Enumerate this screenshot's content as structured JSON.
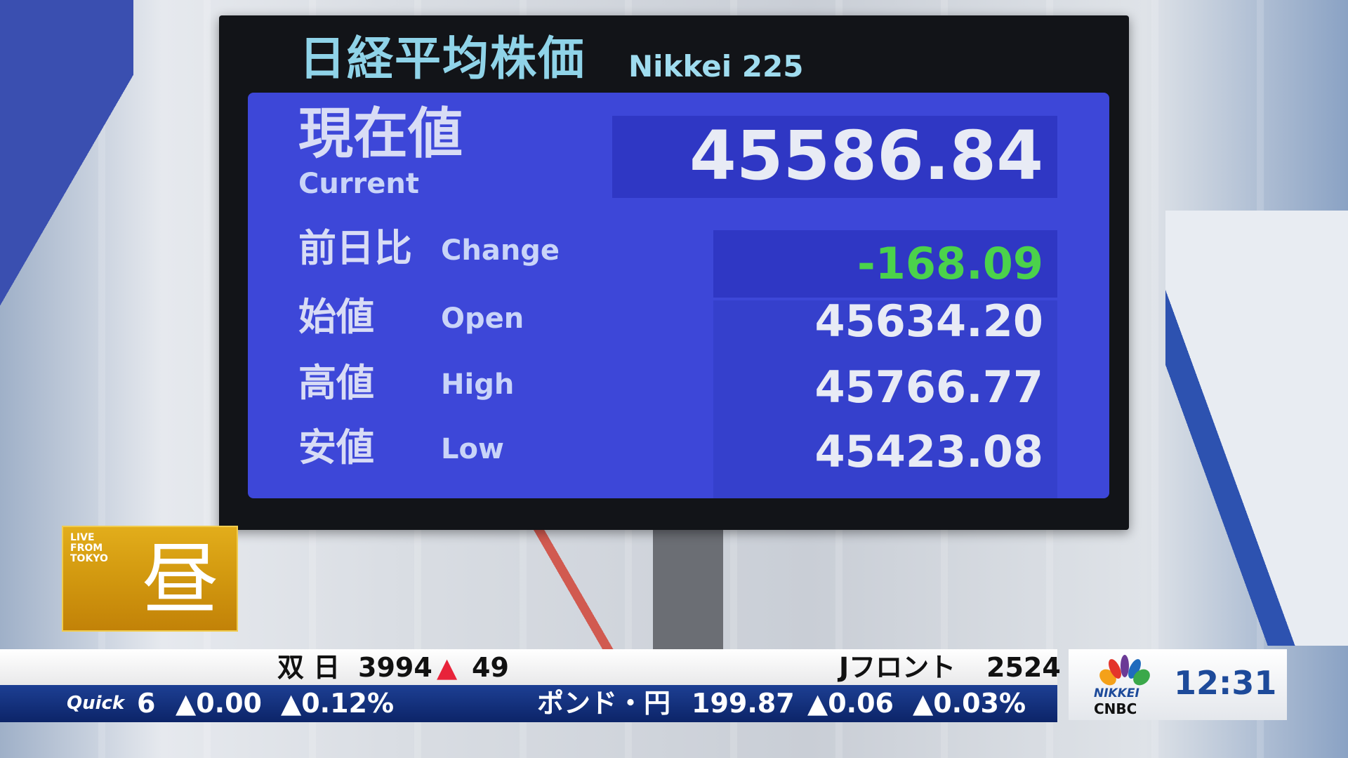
{
  "board": {
    "title_jp": "日経平均株価",
    "title_en": "Nikkei 225",
    "current": {
      "label_jp": "現在値",
      "label_en": "Current",
      "value": "45586.84"
    },
    "change": {
      "label_jp": "前日比",
      "label_en": "Change",
      "value": "-168.09",
      "color": "#4bd24b"
    },
    "open": {
      "label_jp": "始値",
      "label_en": "Open",
      "value": "45634.20"
    },
    "high": {
      "label_jp": "高値",
      "label_en": "High",
      "value": "45766.77"
    },
    "low": {
      "label_jp": "安値",
      "label_en": "Low",
      "value": "45423.08"
    }
  },
  "badge": {
    "live": "LIVE FROM TOKYO",
    "kanji": "昼"
  },
  "ticker_top": [
    {
      "name": "双 日",
      "price": "3994",
      "arrow": "▲",
      "change": "49"
    },
    {
      "name": "Jフロント",
      "price": "2524",
      "arrow": "",
      "change": ""
    }
  ],
  "ticker_bottom": {
    "source": "Quick",
    "items": [
      {
        "name": "",
        "price": "6",
        "change": "▲0.00",
        "pct": "▲0.12%"
      },
      {
        "name": "ポンド・円",
        "price": "199.87",
        "change": "▲0.06",
        "pct": "▲0.03%"
      }
    ]
  },
  "logo": {
    "line1": "NIKKEI",
    "line2": "CNBC"
  },
  "clock": "12:31"
}
